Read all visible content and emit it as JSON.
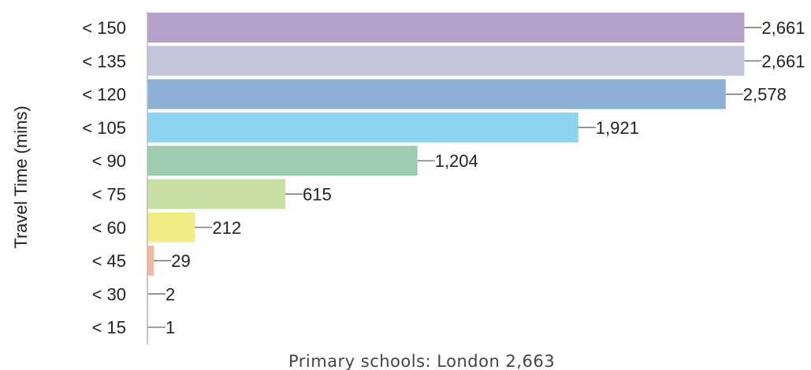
{
  "chart_data": {
    "type": "bar",
    "orientation": "horizontal",
    "categories": [
      "< 150",
      "< 135",
      "< 120",
      "< 105",
      "< 90",
      "< 75",
      "< 60",
      "< 45",
      "< 30",
      "< 15"
    ],
    "values": [
      2661,
      2661,
      2578,
      1921,
      1204,
      615,
      212,
      29,
      2,
      1
    ],
    "data_labels": [
      "2,661",
      "2,661",
      "2,578",
      "1,921",
      "1,204",
      "615",
      "212",
      "29",
      "2",
      "1"
    ],
    "colors": [
      "#b4a0c8",
      "#c5c5dc",
      "#8eb0d6",
      "#8cd4f0",
      "#9ccdb0",
      "#c8e0a4",
      "#f1ed84",
      "#f0b9a0",
      "#e8b8b8",
      "#cfcfcf"
    ],
    "ylabel": "Travel Time (mins)",
    "xlabel": "Primary schools: London 2,663",
    "xlim": [
      0,
      2663
    ],
    "grid": false,
    "legend": "none"
  }
}
